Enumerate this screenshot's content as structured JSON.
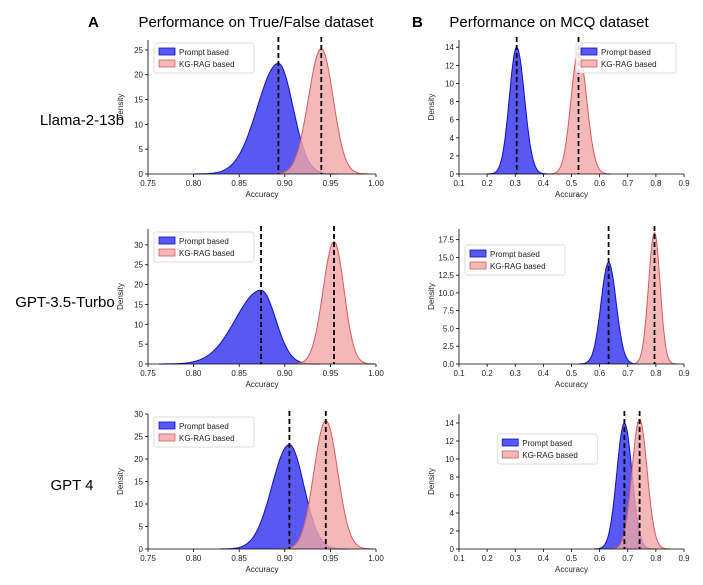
{
  "panel_letters": [
    "A",
    "B"
  ],
  "column_titles": [
    "Performance on True/False dataset",
    "Performance on MCQ dataset"
  ],
  "row_labels": [
    "Llama-2-13b",
    "GPT-3.5-Turbo",
    "GPT 4"
  ],
  "colors": {
    "prompt_fill": "#3b3bf0",
    "prompt_edge": "#1010c8",
    "rag_fill": "#f2a6a6",
    "rag_edge": "#d85a5a",
    "mean_line": "#000000"
  },
  "chart_data": [
    {
      "type": "area",
      "row": 0,
      "col": 0,
      "xlabel": "Accuracy",
      "ylabel": "Density",
      "xlim": [
        0.75,
        1.0
      ],
      "ylim": [
        0,
        27
      ],
      "xticks": [
        "0.75",
        "0.80",
        "0.85",
        "0.90",
        "0.95",
        "1.00"
      ],
      "yticks": [
        "0",
        "5",
        "10",
        "15",
        "20",
        "25"
      ],
      "legend_loc": "upper-left",
      "series": [
        {
          "name": "Prompt based",
          "mean": 0.893,
          "peak": 22.3,
          "sd_left": 0.023,
          "sd_right": 0.016
        },
        {
          "name": "KG-RAG based",
          "mean": 0.94,
          "peak": 25.3,
          "sd_left": 0.014,
          "sd_right": 0.013
        }
      ]
    },
    {
      "type": "area",
      "row": 0,
      "col": 1,
      "xlabel": "Accuracy",
      "ylabel": "Density",
      "xlim": [
        0.1,
        0.9
      ],
      "ylim": [
        0,
        14.8
      ],
      "xticks": [
        "0.1",
        "0.2",
        "0.3",
        "0.4",
        "0.5",
        "0.6",
        "0.7",
        "0.8",
        "0.9"
      ],
      "yticks": [
        "0",
        "2",
        "4",
        "6",
        "8",
        "10",
        "12",
        "14"
      ],
      "legend_loc": "upper-right",
      "series": [
        {
          "name": "Prompt based",
          "mean": 0.305,
          "peak": 14.0,
          "sd_left": 0.026,
          "sd_right": 0.028
        },
        {
          "name": "KG-RAG based",
          "mean": 0.525,
          "peak": 13.6,
          "sd_left": 0.027,
          "sd_right": 0.029
        }
      ]
    },
    {
      "type": "area",
      "row": 1,
      "col": 0,
      "xlabel": "Accuracy",
      "ylabel": "Density",
      "xlim": [
        0.75,
        1.0
      ],
      "ylim": [
        0,
        34
      ],
      "xticks": [
        "0.75",
        "0.80",
        "0.85",
        "0.90",
        "0.95",
        "1.00"
      ],
      "yticks": [
        "0",
        "5",
        "10",
        "15",
        "20",
        "25",
        "30"
      ],
      "legend_loc": "upper-left",
      "series": [
        {
          "name": "Prompt based",
          "mean": 0.874,
          "peak": 18.6,
          "sd_left": 0.028,
          "sd_right": 0.016
        },
        {
          "name": "KG-RAG based",
          "mean": 0.954,
          "peak": 30.8,
          "sd_left": 0.012,
          "sd_right": 0.011
        }
      ]
    },
    {
      "type": "area",
      "row": 1,
      "col": 1,
      "xlabel": "Accuracy",
      "ylabel": "Density",
      "xlim": [
        0.1,
        0.9
      ],
      "ylim": [
        0,
        19
      ],
      "xticks": [
        "0.1",
        "0.2",
        "0.3",
        "0.4",
        "0.5",
        "0.6",
        "0.7",
        "0.8",
        "0.9"
      ],
      "yticks": [
        "0.0",
        "2.5",
        "5.0",
        "7.5",
        "10.0",
        "12.5",
        "15.0",
        "17.5"
      ],
      "legend_loc": "upper-left",
      "series": [
        {
          "name": "Prompt based",
          "mean": 0.632,
          "peak": 14.3,
          "sd_left": 0.027,
          "sd_right": 0.027
        },
        {
          "name": "KG-RAG based",
          "mean": 0.795,
          "peak": 18.5,
          "sd_left": 0.021,
          "sd_right": 0.02
        }
      ]
    },
    {
      "type": "area",
      "row": 2,
      "col": 0,
      "xlabel": "Accuracy",
      "ylabel": "Density",
      "xlim": [
        0.75,
        1.0
      ],
      "ylim": [
        0,
        30
      ],
      "xticks": [
        "0.75",
        "0.80",
        "0.85",
        "0.90",
        "0.95",
        "1.00"
      ],
      "yticks": [
        "0",
        "5",
        "10",
        "15",
        "20",
        "25",
        "30"
      ],
      "legend_loc": "upper-left",
      "series": [
        {
          "name": "Prompt based",
          "mean": 0.905,
          "peak": 23.2,
          "sd_left": 0.019,
          "sd_right": 0.016
        },
        {
          "name": "KG-RAG based",
          "mean": 0.945,
          "peak": 28.5,
          "sd_left": 0.013,
          "sd_right": 0.013
        }
      ]
    },
    {
      "type": "area",
      "row": 2,
      "col": 1,
      "xlabel": "Accuracy",
      "ylabel": "Density",
      "xlim": [
        0.1,
        0.9
      ],
      "ylim": [
        0,
        15
      ],
      "xticks": [
        "0.1",
        "0.2",
        "0.3",
        "0.4",
        "0.5",
        "0.6",
        "0.7",
        "0.8",
        "0.9"
      ],
      "yticks": [
        "0",
        "2",
        "4",
        "6",
        "8",
        "10",
        "12",
        "14"
      ],
      "legend_loc": "upper-center",
      "series": [
        {
          "name": "Prompt based",
          "mean": 0.688,
          "peak": 14.0,
          "sd_left": 0.027,
          "sd_right": 0.027
        },
        {
          "name": "KG-RAG based",
          "mean": 0.742,
          "peak": 14.4,
          "sd_left": 0.027,
          "sd_right": 0.027
        }
      ]
    }
  ]
}
